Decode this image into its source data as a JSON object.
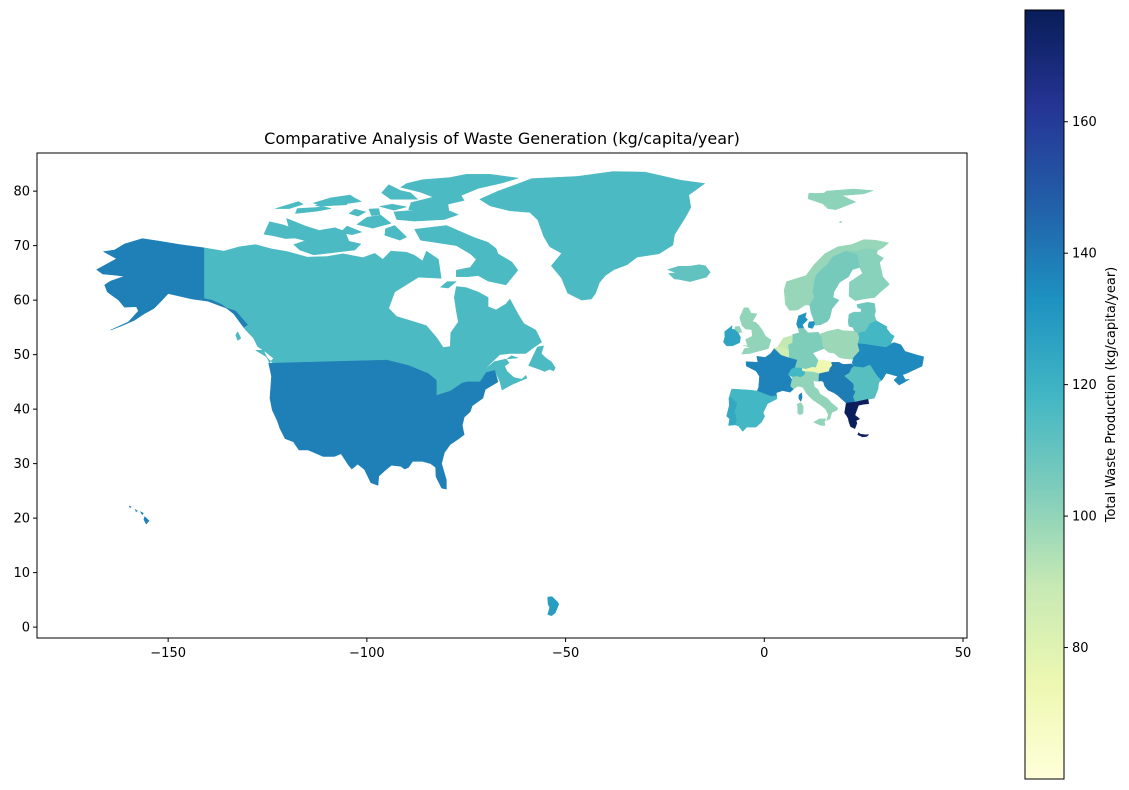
{
  "chart_data": {
    "type": "choropleth",
    "title": "Comparative Analysis of Waste Generation (kg/capita/year)",
    "xlabel": "",
    "ylabel": "",
    "xlim": [
      -183,
      51
    ],
    "ylim": [
      -2,
      87
    ],
    "x_ticks": [
      -150,
      -100,
      -50,
      0,
      50
    ],
    "y_ticks": [
      0,
      10,
      20,
      30,
      40,
      50,
      60,
      70,
      80
    ],
    "x_tick_labels": [
      "−150",
      "−100",
      "−50",
      "0",
      "50"
    ],
    "y_tick_labels": [
      "0",
      "10",
      "20",
      "30",
      "40",
      "50",
      "60",
      "70",
      "80"
    ],
    "colormap": "YlGnBu",
    "colorbar": {
      "label": "Total Waste Production (kg/capita/year)",
      "range": [
        60,
        177
      ],
      "ticks": [
        80,
        100,
        120,
        140,
        160
      ],
      "tick_labels": [
        "80",
        "100",
        "120",
        "140",
        "160"
      ]
    },
    "regions": [
      {
        "region": "USA",
        "value": 138
      },
      {
        "region": "Canada",
        "value": 116
      },
      {
        "region": "Greenland",
        "value": 116
      },
      {
        "region": "French Guiana",
        "value": 128
      },
      {
        "region": "Iceland",
        "value": 111
      },
      {
        "region": "Svalbard",
        "value": 101
      },
      {
        "region": "Norway",
        "value": 99
      },
      {
        "region": "Sweden",
        "value": 106
      },
      {
        "region": "Finland",
        "value": 102
      },
      {
        "region": "United Kingdom",
        "value": 100
      },
      {
        "region": "Ireland",
        "value": 126
      },
      {
        "region": "France",
        "value": 137
      },
      {
        "region": "Spain",
        "value": 118
      },
      {
        "region": "Portugal",
        "value": 124
      },
      {
        "region": "Germany",
        "value": 104
      },
      {
        "region": "Netherlands",
        "value": 90
      },
      {
        "region": "Belgium",
        "value": 85
      },
      {
        "region": "Denmark",
        "value": 132
      },
      {
        "region": "Poland",
        "value": 98
      },
      {
        "region": "Austria",
        "value": 74
      },
      {
        "region": "Switzerland",
        "value": 118
      },
      {
        "region": "Italy",
        "value": 100
      },
      {
        "region": "Balkans",
        "value": 139
      },
      {
        "region": "Greece",
        "value": 176
      },
      {
        "region": "Ukraine",
        "value": 135
      },
      {
        "region": "Belarus",
        "value": 118
      },
      {
        "region": "Baltics",
        "value": 108
      },
      {
        "region": "Romania",
        "value": 113
      }
    ]
  }
}
